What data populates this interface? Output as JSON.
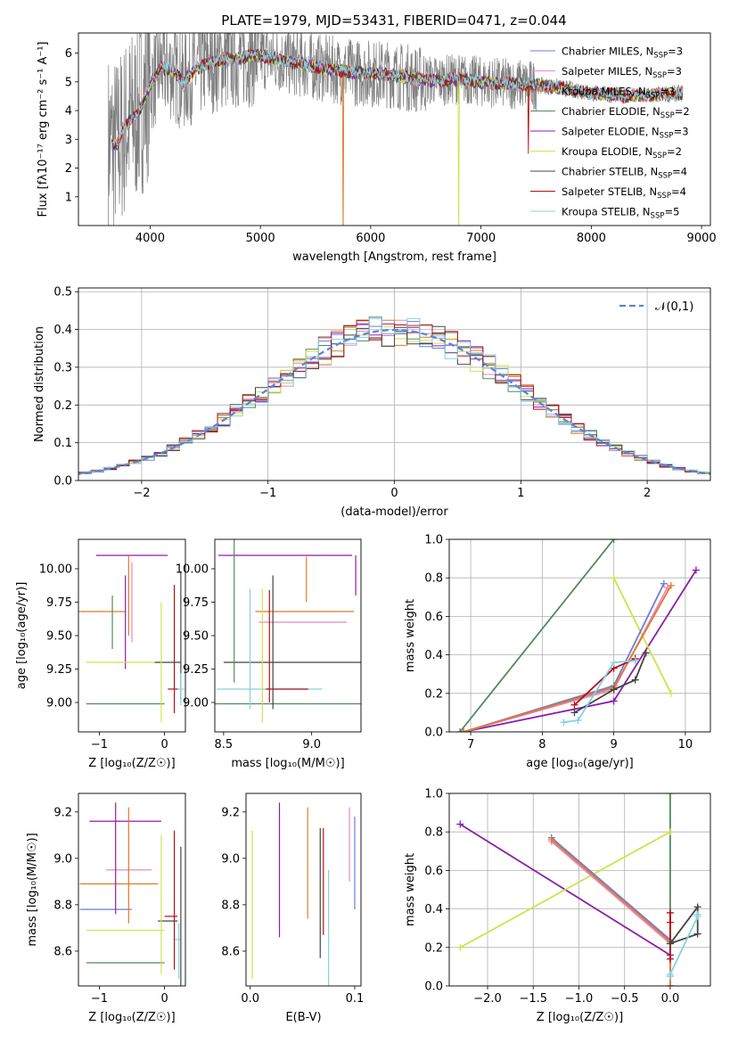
{
  "figure_title": "PLATE=1979, MJD=53431, FIBERID=0471, z=0.044",
  "colors": {
    "chabrier_miles": "#6b7fd6",
    "salpeter_miles": "#e58ac1",
    "kroupa_miles": "#e07a2e",
    "chabrier_elodie": "#55885f",
    "salpeter_elodie": "#8b1fa9",
    "kroupa_elodie": "#cde44c",
    "chabrier_stelib": "#444444",
    "salpeter_stelib": "#b40f14",
    "kroupa_stelib": "#85d1e2",
    "data": "#7f7f7f",
    "gaussian": "#5b87d6"
  },
  "chart_data": [
    {
      "id": "spectrum",
      "type": "line",
      "xlabel": "wavelength [Angstrom, rest frame]",
      "ylabel": "Flux [fλ10⁻¹⁷ erg cm⁻² s⁻¹ A⁻¹]",
      "xlim": [
        3350,
        9080
      ],
      "ylim": [
        0,
        6.7
      ],
      "xticks": [
        4000,
        5000,
        6000,
        7000,
        8000,
        9000
      ],
      "yticks": [
        1,
        2,
        3,
        4,
        5,
        6
      ],
      "legend_position": "top-right",
      "legend": [
        {
          "label": "Chabrier MILES, N",
          "sub": "SSP",
          "tail": "=3",
          "color": "#6b7fd6"
        },
        {
          "label": "Salpeter MILES, N",
          "sub": "SSP",
          "tail": "=3",
          "color": "#e58ac1"
        },
        {
          "label": "Kroupa MILES, N",
          "sub": "SSP",
          "tail": "=3",
          "color": "#e07a2e"
        },
        {
          "label": "Chabrier ELODIE, N",
          "sub": "SSP",
          "tail": "=2",
          "color": "#55885f"
        },
        {
          "label": "Salpeter ELODIE, N",
          "sub": "SSP",
          "tail": "=3",
          "color": "#8b1fa9"
        },
        {
          "label": "Kroupa ELODIE, N",
          "sub": "SSP",
          "tail": "=2",
          "color": "#cde44c"
        },
        {
          "label": "Chabrier STELIB, N",
          "sub": "SSP",
          "tail": "=4",
          "color": "#444444"
        },
        {
          "label": "Salpeter STELIB, N",
          "sub": "SSP",
          "tail": "=4",
          "color": "#b40f14"
        },
        {
          "label": "Kroupa STELIB, N",
          "sub": "SSP",
          "tail": "=5",
          "color": "#85d1e2"
        }
      ],
      "continuum": {
        "x": [
          3620,
          3700,
          3800,
          3900,
          4000,
          4100,
          4200,
          4300,
          4400,
          4500,
          4600,
          4700,
          4800,
          4900,
          5000,
          5200,
          5400,
          5600,
          5800,
          6000,
          6200,
          6400,
          6600,
          6800,
          7000,
          7200,
          7400,
          7600,
          7800,
          8000,
          8200,
          8400,
          8600,
          8800
        ],
        "y": [
          2.9,
          2.8,
          3.6,
          4.0,
          4.9,
          5.5,
          5.4,
          5.0,
          5.4,
          5.6,
          5.7,
          5.8,
          5.8,
          5.9,
          5.9,
          5.75,
          5.6,
          5.45,
          5.35,
          5.3,
          5.25,
          5.1,
          5.05,
          5.1,
          5.0,
          4.95,
          4.9,
          4.85,
          4.75,
          4.6,
          4.55,
          4.5,
          4.55,
          4.6
        ]
      }
    },
    {
      "id": "residuals",
      "type": "step",
      "xlabel": "(data-model)/error",
      "ylabel": "Normed distribution",
      "xlim": [
        -2.5,
        2.5
      ],
      "ylim": [
        0,
        0.51
      ],
      "xticks": [
        -2,
        -1,
        0,
        1,
        2
      ],
      "yticks": [
        0.0,
        0.1,
        0.2,
        0.3,
        0.4,
        0.5
      ],
      "ytick_labels": [
        "0.0",
        "0.1",
        "0.2",
        "0.3",
        "0.4",
        "0.5"
      ],
      "gaussian_label": "𝒩(0,1)",
      "bin_width": 0.1,
      "legend_position": "top-right"
    },
    {
      "id": "age_z",
      "type": "errorbar",
      "xlabel": "Z [log₁₀(Z/Z☉)]",
      "ylabel": "age  [log₁₀(age/yr)]",
      "xlim": [
        -1.32,
        0.32
      ],
      "ylim": [
        8.78,
        10.22
      ],
      "xticks": [
        -1,
        0
      ],
      "yticks": [
        9.0,
        9.25,
        9.5,
        9.75,
        10.0
      ],
      "ytick_labels": [
        "9.00",
        "9.25",
        "9.50",
        "9.75",
        "10.00"
      ],
      "points": [
        {
          "x": -1.2,
          "y": 9.68,
          "xerr": 0.6,
          "yerr": 0.0,
          "color": "#e07a2e"
        },
        {
          "x": -1.2,
          "y": 9.6,
          "xerr": 0.0,
          "yerr": 0.0,
          "color": "#6b7fd6"
        },
        {
          "x": -0.5,
          "y": 10.1,
          "xerr": 0.55,
          "yerr": 0.0,
          "color": "#8b1fa9"
        },
        {
          "x": -0.55,
          "y": 9.8,
          "xerr": 0.0,
          "yerr": 0.3,
          "color": "#e07a2e"
        },
        {
          "x": -0.6,
          "y": 9.6,
          "xerr": 0.0,
          "yerr": 0.35,
          "color": "#8b1fa9"
        },
        {
          "x": -0.8,
          "y": 9.6,
          "xerr": 0.0,
          "yerr": 0.2,
          "color": "#55885f"
        },
        {
          "x": -0.6,
          "y": 9.3,
          "xerr": 0.6,
          "yerr": 0.0,
          "color": "#cde44c"
        },
        {
          "x": 0.05,
          "y": 9.3,
          "xerr": 0.2,
          "yerr": 0.0,
          "color": "#444444"
        },
        {
          "x": -0.6,
          "y": 8.99,
          "xerr": 0.6,
          "yerr": 0.0,
          "color": "#55885f"
        },
        {
          "x": 0.13,
          "y": 9.1,
          "xerr": 0.08,
          "yerr": 0.0,
          "color": "#b40f14"
        },
        {
          "x": 0.15,
          "y": 9.4,
          "xerr": 0.0,
          "yerr": 0.48,
          "color": "#b40f14"
        },
        {
          "x": 0.25,
          "y": 9.5,
          "xerr": 0.0,
          "yerr": 0.48,
          "color": "#444444"
        },
        {
          "x": 0.25,
          "y": 9.1,
          "xerr": 0.05,
          "yerr": 0.12,
          "color": "#85d1e2"
        },
        {
          "x": -0.05,
          "y": 9.3,
          "xerr": 0.0,
          "yerr": 0.45,
          "color": "#cde44c"
        },
        {
          "x": -0.5,
          "y": 9.75,
          "xerr": 0.0,
          "yerr": 0.3,
          "color": "#e58ac1"
        }
      ]
    },
    {
      "id": "age_mass",
      "type": "errorbar",
      "xlabel": "mass [log₁₀(M/M☉)]",
      "ylabel": "",
      "xlim": [
        8.45,
        9.28
      ],
      "ylim": [
        8.78,
        10.22
      ],
      "xticks": [
        8.5,
        9.0
      ],
      "xtick_labels": [
        "8.5",
        "9.0"
      ],
      "yticks": [
        9.0,
        9.25,
        9.5,
        9.75,
        10.0
      ],
      "ytick_labels": [
        "9.00",
        "9.25",
        "9.50",
        "9.75",
        "10.00"
      ],
      "points": [
        {
          "x": 8.85,
          "y": 10.1,
          "xerr": 0.38,
          "yerr": 0.0,
          "color": "#8b1fa9"
        },
        {
          "x": 9.25,
          "y": 9.95,
          "xerr": 0.0,
          "yerr": 0.15,
          "color": "#8b1fa9"
        },
        {
          "x": 8.96,
          "y": 9.68,
          "xerr": 0.28,
          "yerr": 0.0,
          "color": "#e07a2e"
        },
        {
          "x": 8.95,
          "y": 9.6,
          "xerr": 0.25,
          "yerr": 0.0,
          "color": "#e58ac1"
        },
        {
          "x": 8.97,
          "y": 9.92,
          "xerr": 0.0,
          "yerr": 0.17,
          "color": "#e07a2e"
        },
        {
          "x": 8.9,
          "y": 9.3,
          "xerr": 0.4,
          "yerr": 0.0,
          "color": "#444444"
        },
        {
          "x": 8.85,
          "y": 8.99,
          "xerr": 0.45,
          "yerr": 0.0,
          "color": "#55885f"
        },
        {
          "x": 8.76,
          "y": 9.1,
          "xerr": 0.3,
          "yerr": 0.0,
          "color": "#85d1e2"
        },
        {
          "x": 8.86,
          "y": 9.1,
          "xerr": 0.12,
          "yerr": 0.0,
          "color": "#b40f14"
        },
        {
          "x": 8.56,
          "y": 9.7,
          "xerr": 0.0,
          "yerr": 0.55,
          "color": "#55885f"
        },
        {
          "x": 8.65,
          "y": 9.4,
          "xerr": 0.0,
          "yerr": 0.45,
          "color": "#85d1e2"
        },
        {
          "x": 8.72,
          "y": 9.35,
          "xerr": 0.0,
          "yerr": 0.5,
          "color": "#cde44c"
        },
        {
          "x": 8.76,
          "y": 9.42,
          "xerr": 0.0,
          "yerr": 0.42,
          "color": "#b40f14"
        },
        {
          "x": 8.78,
          "y": 9.45,
          "xerr": 0.0,
          "yerr": 0.5,
          "color": "#444444"
        }
      ]
    },
    {
      "id": "mw_age",
      "type": "line",
      "xlabel": "age  [log₁₀(age/yr)]",
      "ylabel": "mass weight",
      "xlim": [
        6.7,
        10.35
      ],
      "ylim": [
        0,
        1.0
      ],
      "xticks": [
        7,
        8,
        9,
        10
      ],
      "yticks": [
        0.0,
        0.2,
        0.4,
        0.6,
        0.8,
        1.0
      ],
      "ytick_labels": [
        "0.0",
        "0.2",
        "0.4",
        "0.6",
        "0.8",
        "1.0"
      ],
      "series": [
        {
          "color": "#55885f",
          "x": [
            6.85,
            9.0
          ],
          "y": [
            0.0,
            1.0
          ]
        },
        {
          "color": "#8b1fa9",
          "x": [
            6.9,
            9.0,
            10.15
          ],
          "y": [
            0.0,
            0.16,
            0.84
          ]
        },
        {
          "color": "#cde44c",
          "x": [
            9.0,
            9.8
          ],
          "y": [
            0.8,
            0.2
          ]
        },
        {
          "color": "#6b7fd6",
          "x": [
            6.9,
            9.0,
            9.7
          ],
          "y": [
            0.0,
            0.24,
            0.77
          ]
        },
        {
          "color": "#e58ac1",
          "x": [
            6.9,
            9.0,
            9.75
          ],
          "y": [
            0.0,
            0.22,
            0.75
          ]
        },
        {
          "color": "#e07a2e",
          "x": [
            6.9,
            9.0,
            9.8
          ],
          "y": [
            0.0,
            0.23,
            0.76
          ]
        },
        {
          "color": "#b40f14",
          "x": [
            8.45,
            9.0,
            9.3
          ],
          "y": [
            0.14,
            0.33,
            0.38
          ]
        },
        {
          "color": "#444444",
          "x": [
            8.45,
            9.0,
            9.3,
            9.45
          ],
          "y": [
            0.1,
            0.22,
            0.27,
            0.41
          ]
        },
        {
          "color": "#85d1e2",
          "x": [
            8.3,
            8.5,
            9.0,
            9.3
          ],
          "y": [
            0.05,
            0.06,
            0.36,
            0.37
          ]
        }
      ]
    },
    {
      "id": "mass_z",
      "type": "errorbar",
      "xlabel": "Z [log₁₀(Z/Z☉)]",
      "ylabel": "mass [log₁₀(M/M☉)]",
      "xlim": [
        -1.32,
        0.32
      ],
      "ylim": [
        8.45,
        9.28
      ],
      "xticks": [
        -1,
        0
      ],
      "yticks": [
        8.6,
        8.8,
        9.0,
        9.2
      ],
      "ytick_labels": [
        "8.6",
        "8.8",
        "9.0",
        "9.2"
      ],
      "points": [
        {
          "x": -0.6,
          "y": 9.16,
          "xerr": 0.55,
          "yerr": 0.0,
          "color": "#8b1fa9"
        },
        {
          "x": -0.55,
          "y": 8.95,
          "xerr": 0.35,
          "yerr": 0.0,
          "color": "#e58ac1"
        },
        {
          "x": -0.7,
          "y": 8.89,
          "xerr": 0.6,
          "yerr": 0.0,
          "color": "#e07a2e"
        },
        {
          "x": -0.9,
          "y": 8.78,
          "xerr": 0.4,
          "yerr": 0.0,
          "color": "#6b7fd6"
        },
        {
          "x": -0.6,
          "y": 8.69,
          "xerr": 0.6,
          "yerr": 0.0,
          "color": "#cde44c"
        },
        {
          "x": -0.6,
          "y": 8.55,
          "xerr": 0.6,
          "yerr": 0.0,
          "color": "#55885f"
        },
        {
          "x": 0.05,
          "y": 8.73,
          "xerr": 0.15,
          "yerr": 0.0,
          "color": "#444444"
        },
        {
          "x": 0.1,
          "y": 8.75,
          "xerr": 0.1,
          "yerr": 0.0,
          "color": "#b40f14"
        },
        {
          "x": 0.2,
          "y": 8.65,
          "xerr": 0.05,
          "yerr": 0.0,
          "color": "#85d1e2"
        },
        {
          "x": -0.75,
          "y": 9.0,
          "xerr": 0.0,
          "yerr": 0.24,
          "color": "#8b1fa9"
        },
        {
          "x": -0.55,
          "y": 8.97,
          "xerr": 0.0,
          "yerr": 0.25,
          "color": "#e07a2e"
        },
        {
          "x": -0.05,
          "y": 8.8,
          "xerr": 0.0,
          "yerr": 0.3,
          "color": "#cde44c"
        },
        {
          "x": 0.15,
          "y": 8.82,
          "xerr": 0.0,
          "yerr": 0.3,
          "color": "#b40f14"
        },
        {
          "x": 0.25,
          "y": 8.75,
          "xerr": 0.0,
          "yerr": 0.3,
          "color": "#444444"
        },
        {
          "x": 0.22,
          "y": 8.6,
          "xerr": 0.0,
          "yerr": 0.12,
          "color": "#85d1e2"
        }
      ]
    },
    {
      "id": "mass_ebv",
      "type": "errorbar",
      "xlabel": "E(B-V)",
      "ylabel": "",
      "xlim": [
        -0.004,
        0.106
      ],
      "ylim": [
        8.45,
        9.28
      ],
      "xticks": [
        0.0,
        0.1
      ],
      "xtick_labels": [
        "0.0",
        "0.1"
      ],
      "yticks": [
        8.6,
        8.8,
        9.0,
        9.2
      ],
      "ytick_labels": [
        "8.6",
        "8.8",
        "9.0",
        "9.2"
      ],
      "points": [
        {
          "x": 0.002,
          "y": 8.8,
          "xerr": 0.0,
          "yerr": 0.32,
          "color": "#cde44c"
        },
        {
          "x": 0.028,
          "y": 8.95,
          "xerr": 0.0,
          "yerr": 0.29,
          "color": "#8b1fa9"
        },
        {
          "x": 0.055,
          "y": 8.98,
          "xerr": 0.0,
          "yerr": 0.24,
          "color": "#e07a2e"
        },
        {
          "x": 0.067,
          "y": 8.85,
          "xerr": 0.0,
          "yerr": 0.28,
          "color": "#444444"
        },
        {
          "x": 0.07,
          "y": 8.9,
          "xerr": 0.0,
          "yerr": 0.23,
          "color": "#b40f14"
        },
        {
          "x": 0.075,
          "y": 8.7,
          "xerr": 0.0,
          "yerr": 0.25,
          "color": "#85d1e2"
        },
        {
          "x": 0.095,
          "y": 9.06,
          "xerr": 0.0,
          "yerr": 0.16,
          "color": "#e58ac1"
        },
        {
          "x": 0.1,
          "y": 8.98,
          "xerr": 0.0,
          "yerr": 0.2,
          "color": "#6b7fd6"
        }
      ]
    },
    {
      "id": "mw_z",
      "type": "line",
      "xlabel": "Z [log₁₀(Z/Z☉)]",
      "ylabel": "mass weight",
      "xlim": [
        -2.42,
        0.44
      ],
      "ylim": [
        0,
        1.0
      ],
      "xticks": [
        -2.0,
        -1.5,
        -1.0,
        -0.5,
        0.0
      ],
      "xtick_labels": [
        "−2.0",
        "−1.5",
        "−1.0",
        "−0.5",
        "0.0"
      ],
      "yticks": [
        0.0,
        0.2,
        0.4,
        0.6,
        0.8,
        1.0
      ],
      "ytick_labels": [
        "0.0",
        "0.2",
        "0.4",
        "0.6",
        "0.8",
        "1.0"
      ],
      "series": [
        {
          "color": "#55885f",
          "x": [
            0.0,
            0.0
          ],
          "y": [
            0.0,
            1.0
          ]
        },
        {
          "color": "#8b1fa9",
          "x": [
            -2.3,
            0.0,
            0.0
          ],
          "y": [
            0.84,
            0.16,
            0.0
          ]
        },
        {
          "color": "#cde44c",
          "x": [
            -2.3,
            0.0
          ],
          "y": [
            0.2,
            0.8
          ]
        },
        {
          "color": "#6b7fd6",
          "x": [
            -1.3,
            0.0,
            0.0
          ],
          "y": [
            0.77,
            0.24,
            0.0
          ]
        },
        {
          "color": "#e58ac1",
          "x": [
            -1.3,
            0.0,
            0.0
          ],
          "y": [
            0.75,
            0.22,
            0.0
          ]
        },
        {
          "color": "#e07a2e",
          "x": [
            -1.3,
            0.0,
            0.0
          ],
          "y": [
            0.76,
            0.23,
            0.0
          ]
        },
        {
          "color": "#b40f14",
          "x": [
            0.0,
            0.0,
            0.0
          ],
          "y": [
            0.14,
            0.33,
            0.38
          ]
        },
        {
          "color": "#444444",
          "x": [
            0.0,
            0.3,
            0.3,
            0.0
          ],
          "y": [
            0.22,
            0.27,
            0.41,
            0.22
          ]
        },
        {
          "color": "#85d1e2",
          "x": [
            0.0,
            0.0,
            0.3,
            0.3
          ],
          "y": [
            0.05,
            0.06,
            0.36,
            0.37
          ]
        }
      ]
    }
  ]
}
